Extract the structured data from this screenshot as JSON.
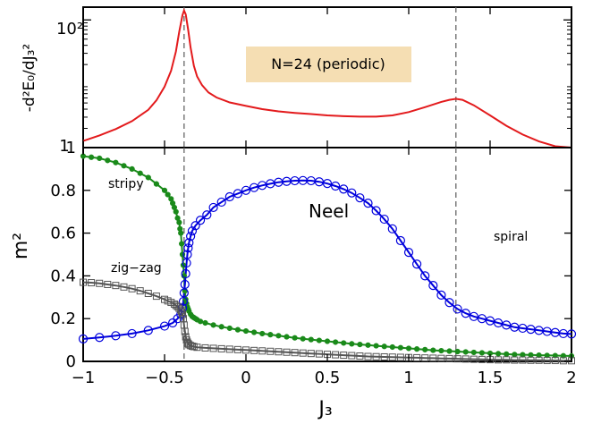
{
  "chart_data": [
    {
      "type": "line",
      "scale_y": "log",
      "xlim": [
        -1,
        2
      ],
      "ylim_log10": [
        0,
        2.2
      ],
      "grid": false,
      "ylabel": "-d²E₀/dJ₃²",
      "y_ticks": [
        "1",
        "10²"
      ],
      "annotation": "N=24 (periodic)",
      "annotation_color": "#f5deb3",
      "line_color": "#e31a1c",
      "dashed_markers_x": [
        -0.38,
        1.29
      ],
      "series": [
        {
          "x": [
            -1.0,
            -0.9,
            -0.8,
            -0.7,
            -0.6,
            -0.55,
            -0.5,
            -0.46,
            -0.43,
            -0.41,
            -0.39,
            -0.38,
            -0.37,
            -0.355,
            -0.34,
            -0.32,
            -0.3,
            -0.27,
            -0.23,
            -0.18,
            -0.1,
            0.0,
            0.1,
            0.2,
            0.3,
            0.4,
            0.5,
            0.6,
            0.7,
            0.8,
            0.9,
            1.0,
            1.1,
            1.2,
            1.25,
            1.29,
            1.33,
            1.4,
            1.5,
            1.6,
            1.7,
            1.8,
            1.9,
            2.0
          ],
          "y": [
            1.27,
            1.55,
            1.95,
            2.6,
            3.9,
            5.5,
            9.0,
            16,
            32,
            65,
            118,
            140,
            122,
            70,
            37,
            19,
            13,
            9.5,
            7.3,
            6.1,
            5.1,
            4.5,
            4.0,
            3.7,
            3.5,
            3.35,
            3.2,
            3.1,
            3.05,
            3.05,
            3.2,
            3.6,
            4.3,
            5.2,
            5.6,
            5.8,
            5.6,
            4.6,
            3.2,
            2.2,
            1.6,
            1.25,
            1.05,
            0.95
          ]
        }
      ]
    },
    {
      "type": "line",
      "xlim": [
        -1,
        2
      ],
      "ylim": [
        0,
        1
      ],
      "grid": false,
      "xlabel": "J₃",
      "ylabel": "m²",
      "x_ticks": [
        "−1",
        "−0.5",
        "0",
        "0.5",
        "1",
        "1.5",
        "2"
      ],
      "y_ticks": [
        "0",
        "0.2",
        "0.4",
        "0.6",
        "0.8",
        "1"
      ],
      "annotations": [
        "stripy",
        "zig−zag",
        "Neel",
        "spiral"
      ],
      "dashed_markers_x": [
        -0.38,
        1.29
      ],
      "series": [
        {
          "color": "#1a8a1a",
          "marker": "filled-circle",
          "x": [
            -1.0,
            -0.95,
            -0.9,
            -0.85,
            -0.8,
            -0.75,
            -0.7,
            -0.65,
            -0.6,
            -0.55,
            -0.5,
            -0.48,
            -0.46,
            -0.45,
            -0.44,
            -0.43,
            -0.42,
            -0.41,
            -0.405,
            -0.4,
            -0.395,
            -0.39,
            -0.385,
            -0.38,
            -0.375,
            -0.37,
            -0.365,
            -0.36,
            -0.355,
            -0.35,
            -0.34,
            -0.33,
            -0.32,
            -0.31,
            -0.3,
            -0.28,
            -0.25,
            -0.2,
            -0.15,
            -0.1,
            -0.05,
            0.0,
            0.05,
            0.1,
            0.15,
            0.2,
            0.25,
            0.3,
            0.35,
            0.4,
            0.45,
            0.5,
            0.55,
            0.6,
            0.65,
            0.7,
            0.75,
            0.8,
            0.85,
            0.9,
            0.95,
            1.0,
            1.05,
            1.1,
            1.15,
            1.2,
            1.25,
            1.3,
            1.35,
            1.4,
            1.45,
            1.5,
            1.55,
            1.6,
            1.65,
            1.7,
            1.75,
            1.8,
            1.85,
            1.9,
            1.95,
            2.0
          ],
          "y": [
            0.96,
            0.955,
            0.95,
            0.94,
            0.93,
            0.915,
            0.9,
            0.88,
            0.86,
            0.83,
            0.8,
            0.78,
            0.76,
            0.74,
            0.72,
            0.7,
            0.67,
            0.65,
            0.62,
            0.6,
            0.55,
            0.5,
            0.45,
            0.4,
            0.33,
            0.29,
            0.27,
            0.255,
            0.245,
            0.235,
            0.22,
            0.21,
            0.205,
            0.2,
            0.195,
            0.187,
            0.18,
            0.17,
            0.162,
            0.155,
            0.148,
            0.142,
            0.136,
            0.13,
            0.125,
            0.12,
            0.115,
            0.11,
            0.106,
            0.102,
            0.098,
            0.094,
            0.09,
            0.086,
            0.082,
            0.079,
            0.076,
            0.073,
            0.07,
            0.067,
            0.064,
            0.061,
            0.058,
            0.055,
            0.052,
            0.05,
            0.048,
            0.046,
            0.044,
            0.042,
            0.04,
            0.038,
            0.036,
            0.034,
            0.032,
            0.031,
            0.03,
            0.029,
            0.028,
            0.027,
            0.026,
            0.025
          ]
        },
        {
          "color": "#0000dd",
          "marker": "open-circle",
          "x": [
            -1.0,
            -0.9,
            -0.8,
            -0.7,
            -0.6,
            -0.5,
            -0.45,
            -0.42,
            -0.4,
            -0.39,
            -0.385,
            -0.38,
            -0.375,
            -0.37,
            -0.365,
            -0.36,
            -0.355,
            -0.35,
            -0.34,
            -0.33,
            -0.31,
            -0.28,
            -0.24,
            -0.2,
            -0.15,
            -0.1,
            -0.05,
            0.0,
            0.05,
            0.1,
            0.15,
            0.2,
            0.25,
            0.3,
            0.35,
            0.4,
            0.45,
            0.5,
            0.55,
            0.6,
            0.65,
            0.7,
            0.75,
            0.8,
            0.85,
            0.9,
            0.95,
            1.0,
            1.05,
            1.1,
            1.15,
            1.2,
            1.25,
            1.3,
            1.35,
            1.4,
            1.45,
            1.5,
            1.55,
            1.6,
            1.65,
            1.7,
            1.75,
            1.8,
            1.85,
            1.9,
            1.95,
            2.0
          ],
          "y": [
            0.105,
            0.112,
            0.12,
            0.13,
            0.145,
            0.165,
            0.18,
            0.2,
            0.22,
            0.25,
            0.28,
            0.32,
            0.36,
            0.41,
            0.46,
            0.5,
            0.53,
            0.555,
            0.585,
            0.61,
            0.635,
            0.66,
            0.685,
            0.72,
            0.745,
            0.77,
            0.785,
            0.8,
            0.813,
            0.823,
            0.831,
            0.838,
            0.842,
            0.845,
            0.846,
            0.845,
            0.84,
            0.832,
            0.82,
            0.806,
            0.788,
            0.765,
            0.74,
            0.705,
            0.665,
            0.62,
            0.565,
            0.51,
            0.455,
            0.4,
            0.355,
            0.31,
            0.275,
            0.245,
            0.225,
            0.21,
            0.2,
            0.19,
            0.18,
            0.17,
            0.16,
            0.155,
            0.15,
            0.145,
            0.14,
            0.135,
            0.13,
            0.128
          ]
        },
        {
          "color": "#555555",
          "marker": "open-square",
          "x": [
            -1.0,
            -0.95,
            -0.9,
            -0.85,
            -0.8,
            -0.75,
            -0.7,
            -0.65,
            -0.6,
            -0.55,
            -0.5,
            -0.48,
            -0.46,
            -0.44,
            -0.43,
            -0.42,
            -0.41,
            -0.4,
            -0.395,
            -0.39,
            -0.385,
            -0.38,
            -0.375,
            -0.37,
            -0.365,
            -0.36,
            -0.355,
            -0.35,
            -0.34,
            -0.33,
            -0.32,
            -0.3,
            -0.25,
            -0.2,
            -0.15,
            -0.1,
            -0.05,
            0.0,
            0.05,
            0.1,
            0.15,
            0.2,
            0.25,
            0.3,
            0.35,
            0.4,
            0.45,
            0.5,
            0.55,
            0.6,
            0.65,
            0.7,
            0.75,
            0.8,
            0.85,
            0.9,
            0.95,
            1.0,
            1.05,
            1.1,
            1.15,
            1.2,
            1.25,
            1.3,
            1.35,
            1.4,
            1.45,
            1.5,
            1.55,
            1.6,
            1.65,
            1.7,
            1.75,
            1.8,
            1.85,
            1.9,
            1.95,
            2.0
          ],
          "y": [
            0.37,
            0.368,
            0.365,
            0.36,
            0.355,
            0.348,
            0.34,
            0.33,
            0.318,
            0.305,
            0.29,
            0.283,
            0.276,
            0.268,
            0.262,
            0.256,
            0.248,
            0.24,
            0.232,
            0.22,
            0.2,
            0.17,
            0.14,
            0.115,
            0.1,
            0.09,
            0.083,
            0.078,
            0.074,
            0.071,
            0.069,
            0.066,
            0.063,
            0.061,
            0.059,
            0.057,
            0.055,
            0.053,
            0.051,
            0.049,
            0.047,
            0.045,
            0.043,
            0.041,
            0.039,
            0.037,
            0.035,
            0.033,
            0.031,
            0.029,
            0.027,
            0.025,
            0.023,
            0.022,
            0.021,
            0.02,
            0.019,
            0.018,
            0.017,
            0.016,
            0.015,
            0.014,
            0.013,
            0.012,
            0.011,
            0.01,
            0.009,
            0.008,
            0.007,
            0.007,
            0.006,
            0.006,
            0.005,
            0.005,
            0.004,
            0.004,
            0.003,
            0.003
          ]
        }
      ]
    }
  ]
}
